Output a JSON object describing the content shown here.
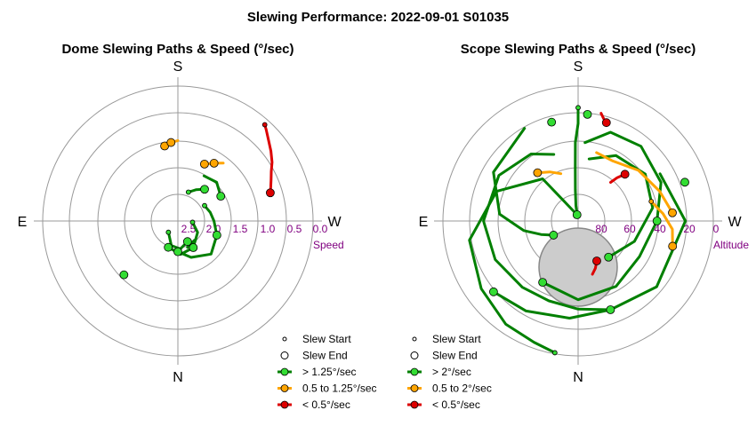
{
  "title": "Slewing Performance: 2022-09-01 S01035",
  "chart_data": [
    {
      "type": "polar-line",
      "title": "Dome Slewing Paths & Speed (°/sec)",
      "radial_label": "Speed",
      "radial_ticks": [
        "2.5",
        "2.0",
        "1.5",
        "1.0",
        "0.5",
        "0.0"
      ],
      "cardinals": {
        "top": "S",
        "bottom": "N",
        "left": "E",
        "right": "W"
      },
      "legend": [
        {
          "label": "Slew Start",
          "kind": "start"
        },
        {
          "label": "Slew End",
          "kind": "end"
        },
        {
          "label": "> 1.25°/sec",
          "kind": "line",
          "color": "#008000",
          "marker": "#33dd33"
        },
        {
          "label": "0.5 to 1.25°/sec",
          "kind": "line",
          "color": "#ffa500",
          "marker": "#ffa500"
        },
        {
          "label": "< 0.5°/sec",
          "kind": "line",
          "color": "#dd0000",
          "marker": "#dd0000"
        }
      ],
      "paths": [
        {
          "cls": "red",
          "pts": [
            [
              -42,
              0.1
            ],
            [
              -44,
              0.15
            ],
            [
              -48,
              0.25
            ],
            [
              -53,
              0.35
            ],
            [
              -58,
              0.45
            ],
            [
              -62,
              0.55
            ],
            [
              -66,
              0.62
            ],
            [
              -70,
              0.68
            ],
            [
              -73,
              0.72
            ]
          ]
        },
        {
          "cls": "green",
          "pts": [
            [
              -60,
              1.95
            ],
            [
              -75,
              1.9
            ],
            [
              -90,
              1.85
            ],
            [
              -110,
              1.75
            ],
            [
              -135,
              1.65
            ],
            [
              -160,
              1.8
            ],
            [
              -180,
              1.95
            ]
          ]
        },
        {
          "cls": "green",
          "pts": [
            [
              -95,
              2.25
            ],
            [
              -120,
              2.1
            ],
            [
              -150,
              1.95
            ],
            [
              -175,
              1.9
            ],
            [
              -200,
              2.0
            ]
          ]
        },
        {
          "cls": "green",
          "pts": [
            [
              140,
              2.25
            ],
            [
              165,
              2.05
            ],
            [
              185,
              2.0
            ],
            [
              205,
              2.1
            ]
          ]
        },
        {
          "cls": "green",
          "pts": [
            [
              -30,
              1.55
            ],
            [
              -45,
              1.5
            ],
            [
              -60,
              1.6
            ]
          ]
        },
        {
          "cls": "green",
          "pts": [
            [
              -140,
              2.05
            ],
            [
              -160,
              2.0
            ]
          ]
        },
        {
          "cls": "green",
          "pts": [
            [
              -20,
              1.95
            ],
            [
              -30,
              1.85
            ],
            [
              -40,
              1.75
            ]
          ]
        },
        {
          "cls": "orange",
          "pts": [
            [
              -25,
              1.35
            ],
            [
              -32,
              1.25
            ],
            [
              -38,
              1.15
            ]
          ]
        },
        {
          "cls": "orange",
          "pts": [
            [
              10,
              1.1
            ],
            [
              5,
              1.05
            ],
            [
              0,
              1.02
            ]
          ]
        }
      ],
      "markers": [
        {
          "cls": "red",
          "pt": [
            -42,
            0.1
          ],
          "role": "start"
        },
        {
          "cls": "red",
          "pt": [
            -73,
            0.72
          ],
          "role": "end"
        },
        {
          "cls": "orange",
          "pt": [
            10,
            1.1
          ],
          "role": "end"
        },
        {
          "cls": "orange",
          "pt": [
            5,
            1.05
          ],
          "role": "end"
        },
        {
          "cls": "orange",
          "pt": [
            -25,
            1.35
          ],
          "role": "end"
        },
        {
          "cls": "orange",
          "pt": [
            -32,
            1.25
          ],
          "role": "end"
        },
        {
          "cls": "green",
          "pt": [
            -180,
            1.95
          ],
          "role": "end"
        },
        {
          "cls": "green",
          "pt": [
            -200,
            2.0
          ],
          "role": "end"
        },
        {
          "cls": "green",
          "pt": [
            205,
            2.1
          ],
          "role": "end"
        },
        {
          "cls": "green",
          "pt": [
            -60,
            1.6
          ],
          "role": "end"
        },
        {
          "cls": "green",
          "pt": [
            -40,
            1.75
          ],
          "role": "end"
        },
        {
          "cls": "green",
          "pt": [
            -150,
            1.95
          ],
          "role": "end"
        },
        {
          "cls": "green",
          "pt": [
            -225,
            1.1
          ],
          "role": "end"
        },
        {
          "cls": "green",
          "pt": [
            -110,
            1.75
          ],
          "role": "end"
        },
        {
          "cls": "green",
          "pt": [
            -60,
            1.95
          ],
          "role": "start"
        },
        {
          "cls": "green",
          "pt": [
            -95,
            2.25
          ],
          "role": "start"
        },
        {
          "cls": "green",
          "pt": [
            140,
            2.25
          ],
          "role": "start"
        },
        {
          "cls": "green",
          "pt": [
            -20,
            1.95
          ],
          "role": "start"
        }
      ]
    },
    {
      "type": "polar-line",
      "title": "Scope Slewing Paths & Speed (°/sec)",
      "radial_label": "Altitude",
      "radial_ticks": [
        "80",
        "60",
        "40",
        "20",
        "0"
      ],
      "cardinals": {
        "top": "S",
        "bottom": "N",
        "left": "E",
        "right": "W"
      },
      "legend": [
        {
          "label": "Slew Start",
          "kind": "start"
        },
        {
          "label": "Slew End",
          "kind": "end"
        },
        {
          "label": "> 2°/sec",
          "kind": "line",
          "color": "#008000",
          "marker": "#33dd33"
        },
        {
          "label": "0.5 to 2°/sec",
          "kind": "line",
          "color": "#ffa500",
          "marker": "#ffa500"
        },
        {
          "label": "< 0.5°/sec",
          "kind": "line",
          "color": "#dd0000",
          "marker": "#dd0000"
        }
      ],
      "paths": [
        {
          "cls": "green",
          "pts": [
            [
              0,
              18
            ],
            [
              0,
              28
            ],
            [
              2,
              40
            ],
            [
              3,
              55
            ],
            [
              5,
              70
            ],
            [
              8,
              80
            ],
            [
              10,
              86
            ]
          ]
        },
        {
          "cls": "green",
          "pts": [
            [
              20,
              45
            ],
            [
              35,
              38
            ],
            [
              60,
              32
            ],
            [
              90,
              30
            ],
            [
              115,
              32
            ],
            [
              140,
              35
            ],
            [
              160,
              36
            ],
            [
              180,
              34
            ],
            [
              200,
              30
            ]
          ]
        },
        {
          "cls": "green",
          "pts": [
            [
              10,
              86
            ],
            [
              40,
              55
            ],
            [
              70,
              35
            ],
            [
              100,
              20
            ],
            [
              125,
              15
            ],
            [
              145,
              10
            ],
            [
              160,
              8
            ],
            [
              170,
              5
            ]
          ]
        },
        {
          "cls": "green",
          "pts": [
            [
              -60,
              30
            ],
            [
              -90,
              22
            ],
            [
              -130,
              25
            ],
            [
              -160,
              30
            ],
            [
              -185,
              28
            ],
            [
              -210,
              24
            ],
            [
              -230,
              20
            ]
          ]
        },
        {
          "cls": "green",
          "pts": [
            [
              -5,
              40
            ],
            [
              -20,
              30
            ],
            [
              -40,
              28
            ],
            [
              -65,
              32
            ],
            [
              -90,
              40
            ],
            [
              -120,
              45
            ],
            [
              -150,
              42
            ],
            [
              -180,
              40
            ],
            [
              -210,
              45
            ]
          ]
        },
        {
          "cls": "green",
          "pts": [
            [
              -10,
              50
            ],
            [
              -30,
              42
            ],
            [
              -55,
              38
            ],
            [
              -80,
              42
            ],
            [
              -110,
              52
            ],
            [
              -140,
              60
            ]
          ]
        },
        {
          "cls": "green",
          "pts": [
            [
              30,
              22
            ],
            [
              60,
              28
            ],
            [
              85,
              40
            ],
            [
              100,
              55
            ],
            [
              110,
              65
            ],
            [
              120,
              72
            ]
          ]
        },
        {
          "cls": "orange",
          "pts": [
            [
              -15,
              45
            ],
            [
              -30,
              46
            ],
            [
              -50,
              40
            ],
            [
              -70,
              35
            ],
            [
              -85,
              30
            ]
          ]
        },
        {
          "cls": "orange",
          "pts": [
            [
              -75,
              42
            ],
            [
              -85,
              36
            ],
            [
              -95,
              30
            ],
            [
              -105,
              28
            ]
          ]
        },
        {
          "cls": "orange",
          "pts": [
            [
              20,
              58
            ],
            [
              30,
              54
            ],
            [
              40,
              50
            ]
          ]
        },
        {
          "cls": "red",
          "pts": [
            [
              -40,
              58
            ],
            [
              -42,
              53
            ],
            [
              -45,
              48
            ]
          ]
        },
        {
          "cls": "red",
          "pts": [
            [
              -12,
              20
            ],
            [
              -14,
              23
            ],
            [
              -16,
              25
            ]
          ]
        },
        {
          "cls": "red",
          "pts": [
            [
              -155,
              62
            ],
            [
              -160,
              58
            ],
            [
              -165,
              55
            ]
          ]
        }
      ],
      "markers": [
        {
          "cls": "green",
          "pt": [
            0,
            18
          ],
          "role": "start"
        },
        {
          "cls": "green",
          "pt": [
            10,
            86
          ],
          "role": "end"
        },
        {
          "cls": "green",
          "pt": [
            200,
            30
          ],
          "role": "end"
        },
        {
          "cls": "green",
          "pt": [
            170,
            5
          ],
          "role": "start"
        },
        {
          "cls": "green",
          "pt": [
            -230,
            20
          ],
          "role": "end"
        },
        {
          "cls": "green",
          "pt": [
            -210,
            45
          ],
          "role": "end"
        },
        {
          "cls": "green",
          "pt": [
            -140,
            60
          ],
          "role": "end"
        },
        {
          "cls": "green",
          "pt": [
            120,
            72
          ],
          "role": "end"
        },
        {
          "cls": "green",
          "pt": [
            -70,
            18
          ],
          "role": "end"
        },
        {
          "cls": "green",
          "pt": [
            15,
            25
          ],
          "role": "end"
        },
        {
          "cls": "green",
          "pt": [
            -5,
            22
          ],
          "role": "end"
        },
        {
          "cls": "green",
          "pt": [
            -90,
            40
          ],
          "role": "end"
        },
        {
          "cls": "orange",
          "pt": [
            -85,
            30
          ],
          "role": "end"
        },
        {
          "cls": "orange",
          "pt": [
            -105,
            28
          ],
          "role": "end"
        },
        {
          "cls": "orange",
          "pt": [
            40,
            50
          ],
          "role": "end"
        },
        {
          "cls": "orange",
          "pt": [
            -75,
            42
          ],
          "role": "start"
        },
        {
          "cls": "red",
          "pt": [
            -45,
            48
          ],
          "role": "end"
        },
        {
          "cls": "red",
          "pt": [
            -16,
            25
          ],
          "role": "end"
        },
        {
          "cls": "red",
          "pt": [
            -155,
            62
          ],
          "role": "end"
        }
      ],
      "zenith_disk": {
        "alt_min": 70
      }
    }
  ]
}
